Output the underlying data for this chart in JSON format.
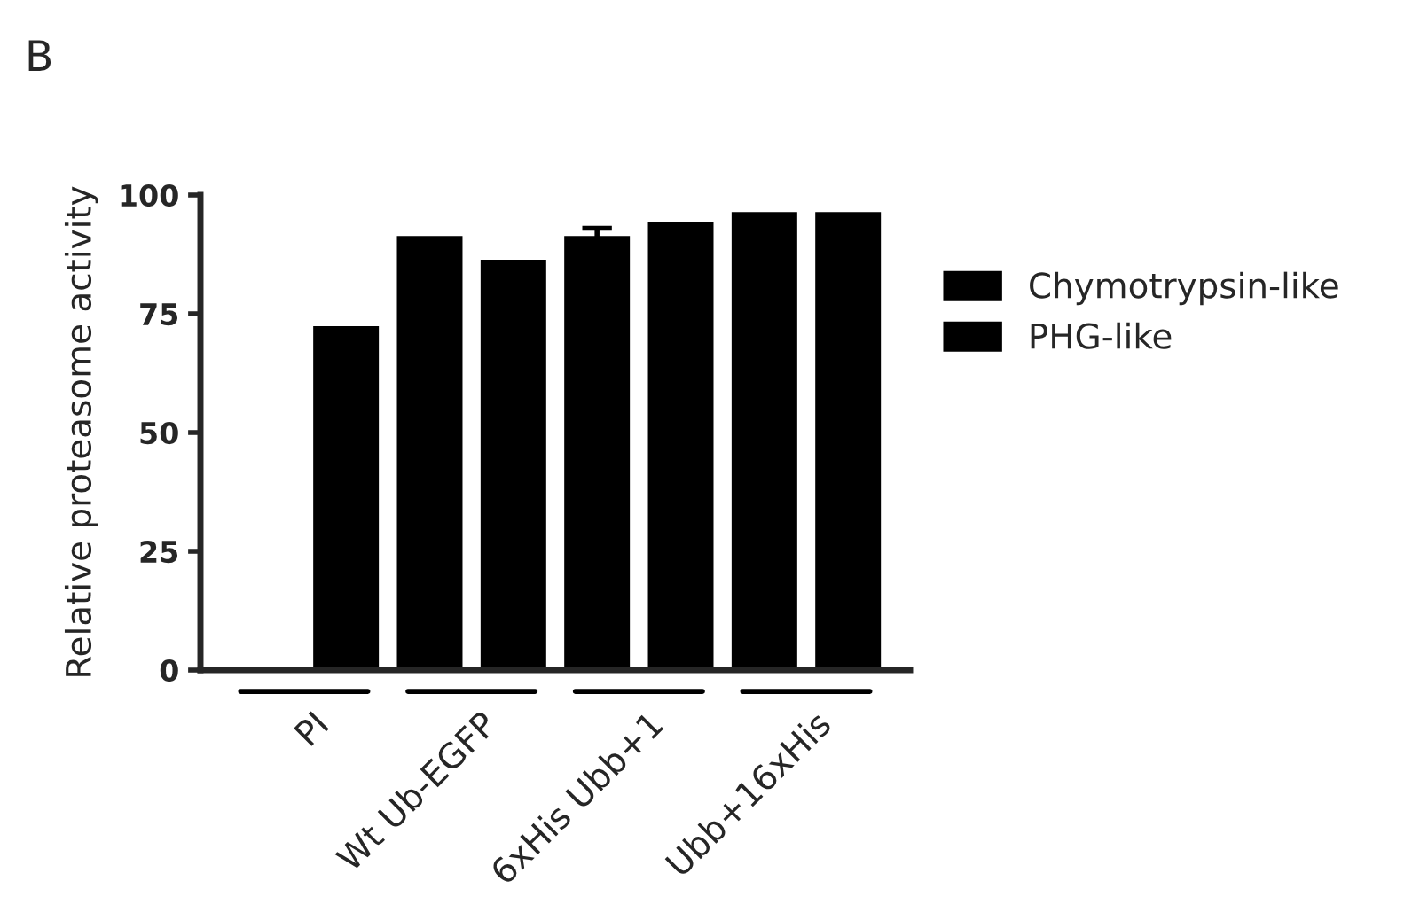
{
  "chart_data": {
    "type": "bar",
    "ylabel": "Relative proteasome activity",
    "categories": [
      "PI",
      "Wt Ub-EGFP",
      "6xHis Ubb+1",
      "Ubb+16xHis"
    ],
    "series": [
      {
        "name": "Chymotrypsin-like",
        "color": "#000000",
        "values": [
          0,
          91,
          91,
          96
        ],
        "errors": [
          null,
          null,
          2,
          null
        ]
      },
      {
        "name": "PHG-like",
        "color": "#000000",
        "values": [
          72,
          86,
          94,
          96
        ]
      }
    ],
    "ylim": [
      0,
      100
    ],
    "yticks": [
      0,
      25,
      50,
      75,
      100
    ],
    "grid": false,
    "legend": "right",
    "annotations": [
      "B"
    ]
  }
}
